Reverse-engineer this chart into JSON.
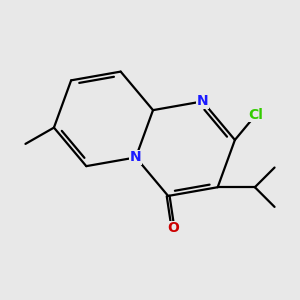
{
  "bg_color": "#e8e8e8",
  "atom_colors": {
    "C": "#000000",
    "N": "#1a1aff",
    "O": "#cc0000",
    "Cl": "#33cc00"
  },
  "bond_color": "#000000",
  "bond_width": 1.6,
  "font_size": 10,
  "figsize": [
    3.0,
    3.0
  ],
  "dpi": 100
}
